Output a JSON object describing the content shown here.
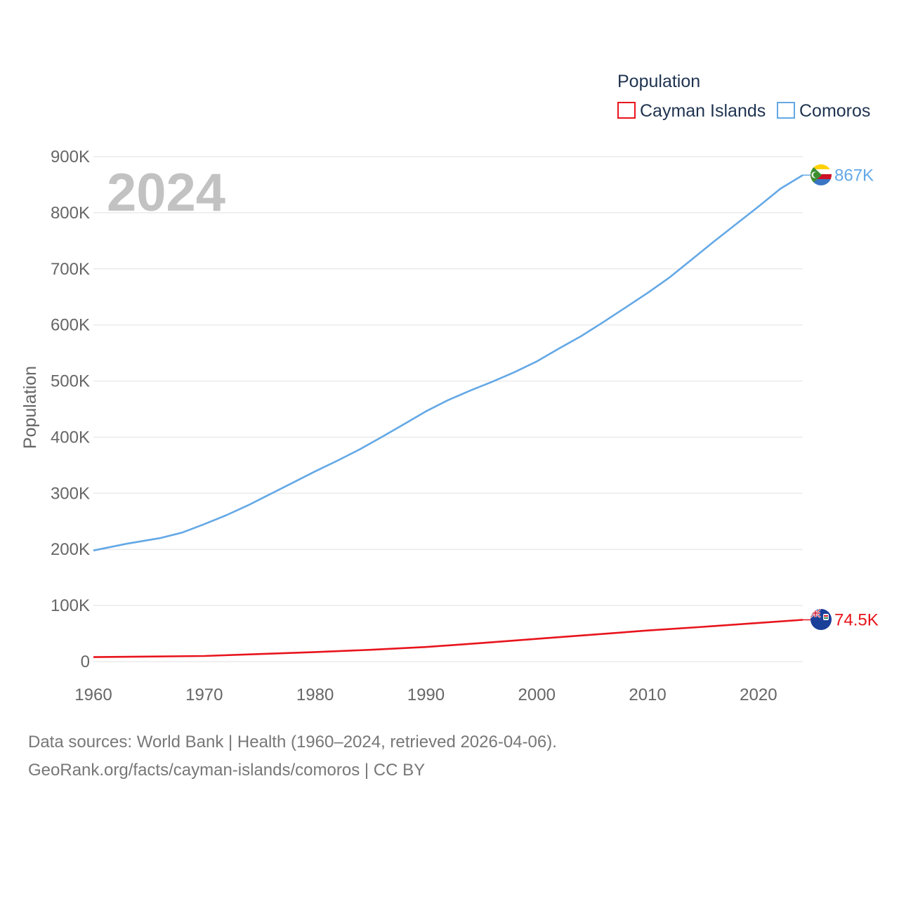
{
  "chart_data": {
    "type": "line",
    "title": "",
    "legend_title": "Population",
    "ylabel": "Population",
    "xlabel": "",
    "year_label": "2024",
    "xlim": [
      1960,
      2024
    ],
    "ylim": [
      0,
      900000
    ],
    "x_ticks": [
      1960,
      1970,
      1980,
      1990,
      2000,
      2010,
      2020
    ],
    "y_ticks": [
      {
        "value": 0,
        "label": "0"
      },
      {
        "value": 100000,
        "label": "100K"
      },
      {
        "value": 200000,
        "label": "200K"
      },
      {
        "value": 300000,
        "label": "300K"
      },
      {
        "value": 400000,
        "label": "400K"
      },
      {
        "value": 500000,
        "label": "500K"
      },
      {
        "value": 600000,
        "label": "600K"
      },
      {
        "value": 700000,
        "label": "700K"
      },
      {
        "value": 800000,
        "label": "800K"
      },
      {
        "value": 900000,
        "label": "900K"
      }
    ],
    "series": [
      {
        "name": "Cayman Islands",
        "color": "#e8141c",
        "end_label": "74.5K",
        "flag_icon": "cayman-islands-flag-icon",
        "points": [
          [
            1960,
            8000
          ],
          [
            1965,
            9000
          ],
          [
            1970,
            10000
          ],
          [
            1975,
            13500
          ],
          [
            1980,
            17000
          ],
          [
            1985,
            21000
          ],
          [
            1990,
            26000
          ],
          [
            1995,
            33000
          ],
          [
            2000,
            40500
          ],
          [
            2005,
            48000
          ],
          [
            2010,
            55500
          ],
          [
            2015,
            62000
          ],
          [
            2020,
            69000
          ],
          [
            2024,
            74500
          ]
        ]
      },
      {
        "name": "Comoros",
        "color": "#63a8e6",
        "end_label": "867K",
        "flag_icon": "comoros-flag-icon",
        "points": [
          [
            1960,
            198000
          ],
          [
            1963,
            210000
          ],
          [
            1966,
            220000
          ],
          [
            1968,
            230000
          ],
          [
            1970,
            245000
          ],
          [
            1972,
            261000
          ],
          [
            1974,
            279000
          ],
          [
            1976,
            299000
          ],
          [
            1978,
            319000
          ],
          [
            1980,
            339000
          ],
          [
            1982,
            358000
          ],
          [
            1984,
            378000
          ],
          [
            1986,
            400000
          ],
          [
            1988,
            423000
          ],
          [
            1990,
            446000
          ],
          [
            1992,
            466000
          ],
          [
            1994,
            483000
          ],
          [
            1996,
            499000
          ],
          [
            1998,
            516000
          ],
          [
            2000,
            535000
          ],
          [
            2002,
            558000
          ],
          [
            2004,
            580000
          ],
          [
            2006,
            605000
          ],
          [
            2008,
            631000
          ],
          [
            2010,
            657000
          ],
          [
            2012,
            685000
          ],
          [
            2014,
            717000
          ],
          [
            2016,
            749000
          ],
          [
            2018,
            780000
          ],
          [
            2020,
            811000
          ],
          [
            2022,
            843000
          ],
          [
            2024,
            867000
          ]
        ]
      }
    ]
  },
  "footer": {
    "line1": "Data sources: World Bank | Health (1960–2024, retrieved 2026-04-06).",
    "line2": "GeoRank.org/facts/cayman-islands/comoros | CC BY"
  }
}
